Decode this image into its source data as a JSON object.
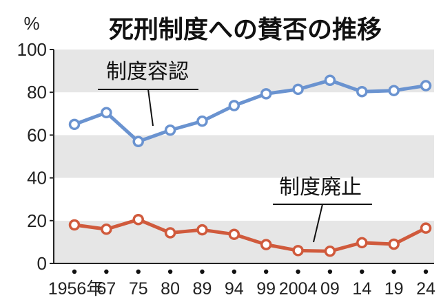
{
  "chart_data": {
    "type": "line",
    "title": "死刑制度への賛否の推移",
    "ylabel": "%",
    "ylim": [
      0,
      100
    ],
    "yticks": [
      0,
      20,
      40,
      60,
      80,
      100
    ],
    "categories": [
      "1956年",
      "67",
      "75",
      "80",
      "89",
      "94",
      "99",
      "2004",
      "09",
      "14",
      "19",
      "24"
    ],
    "series": [
      {
        "name": "制度容認",
        "color": "#6a93d0",
        "values": [
          65,
          70.5,
          57,
          62.3,
          66.5,
          73.8,
          79.3,
          81.4,
          85.6,
          80.3,
          80.8,
          83.1
        ]
      },
      {
        "name": "制度廃止",
        "color": "#d05a3c",
        "values": [
          18,
          16,
          20.5,
          14.3,
          15.7,
          13.6,
          8.8,
          6,
          5.7,
          9.7,
          9,
          16.5
        ]
      }
    ],
    "grid_bands": true,
    "legend": "inline"
  }
}
